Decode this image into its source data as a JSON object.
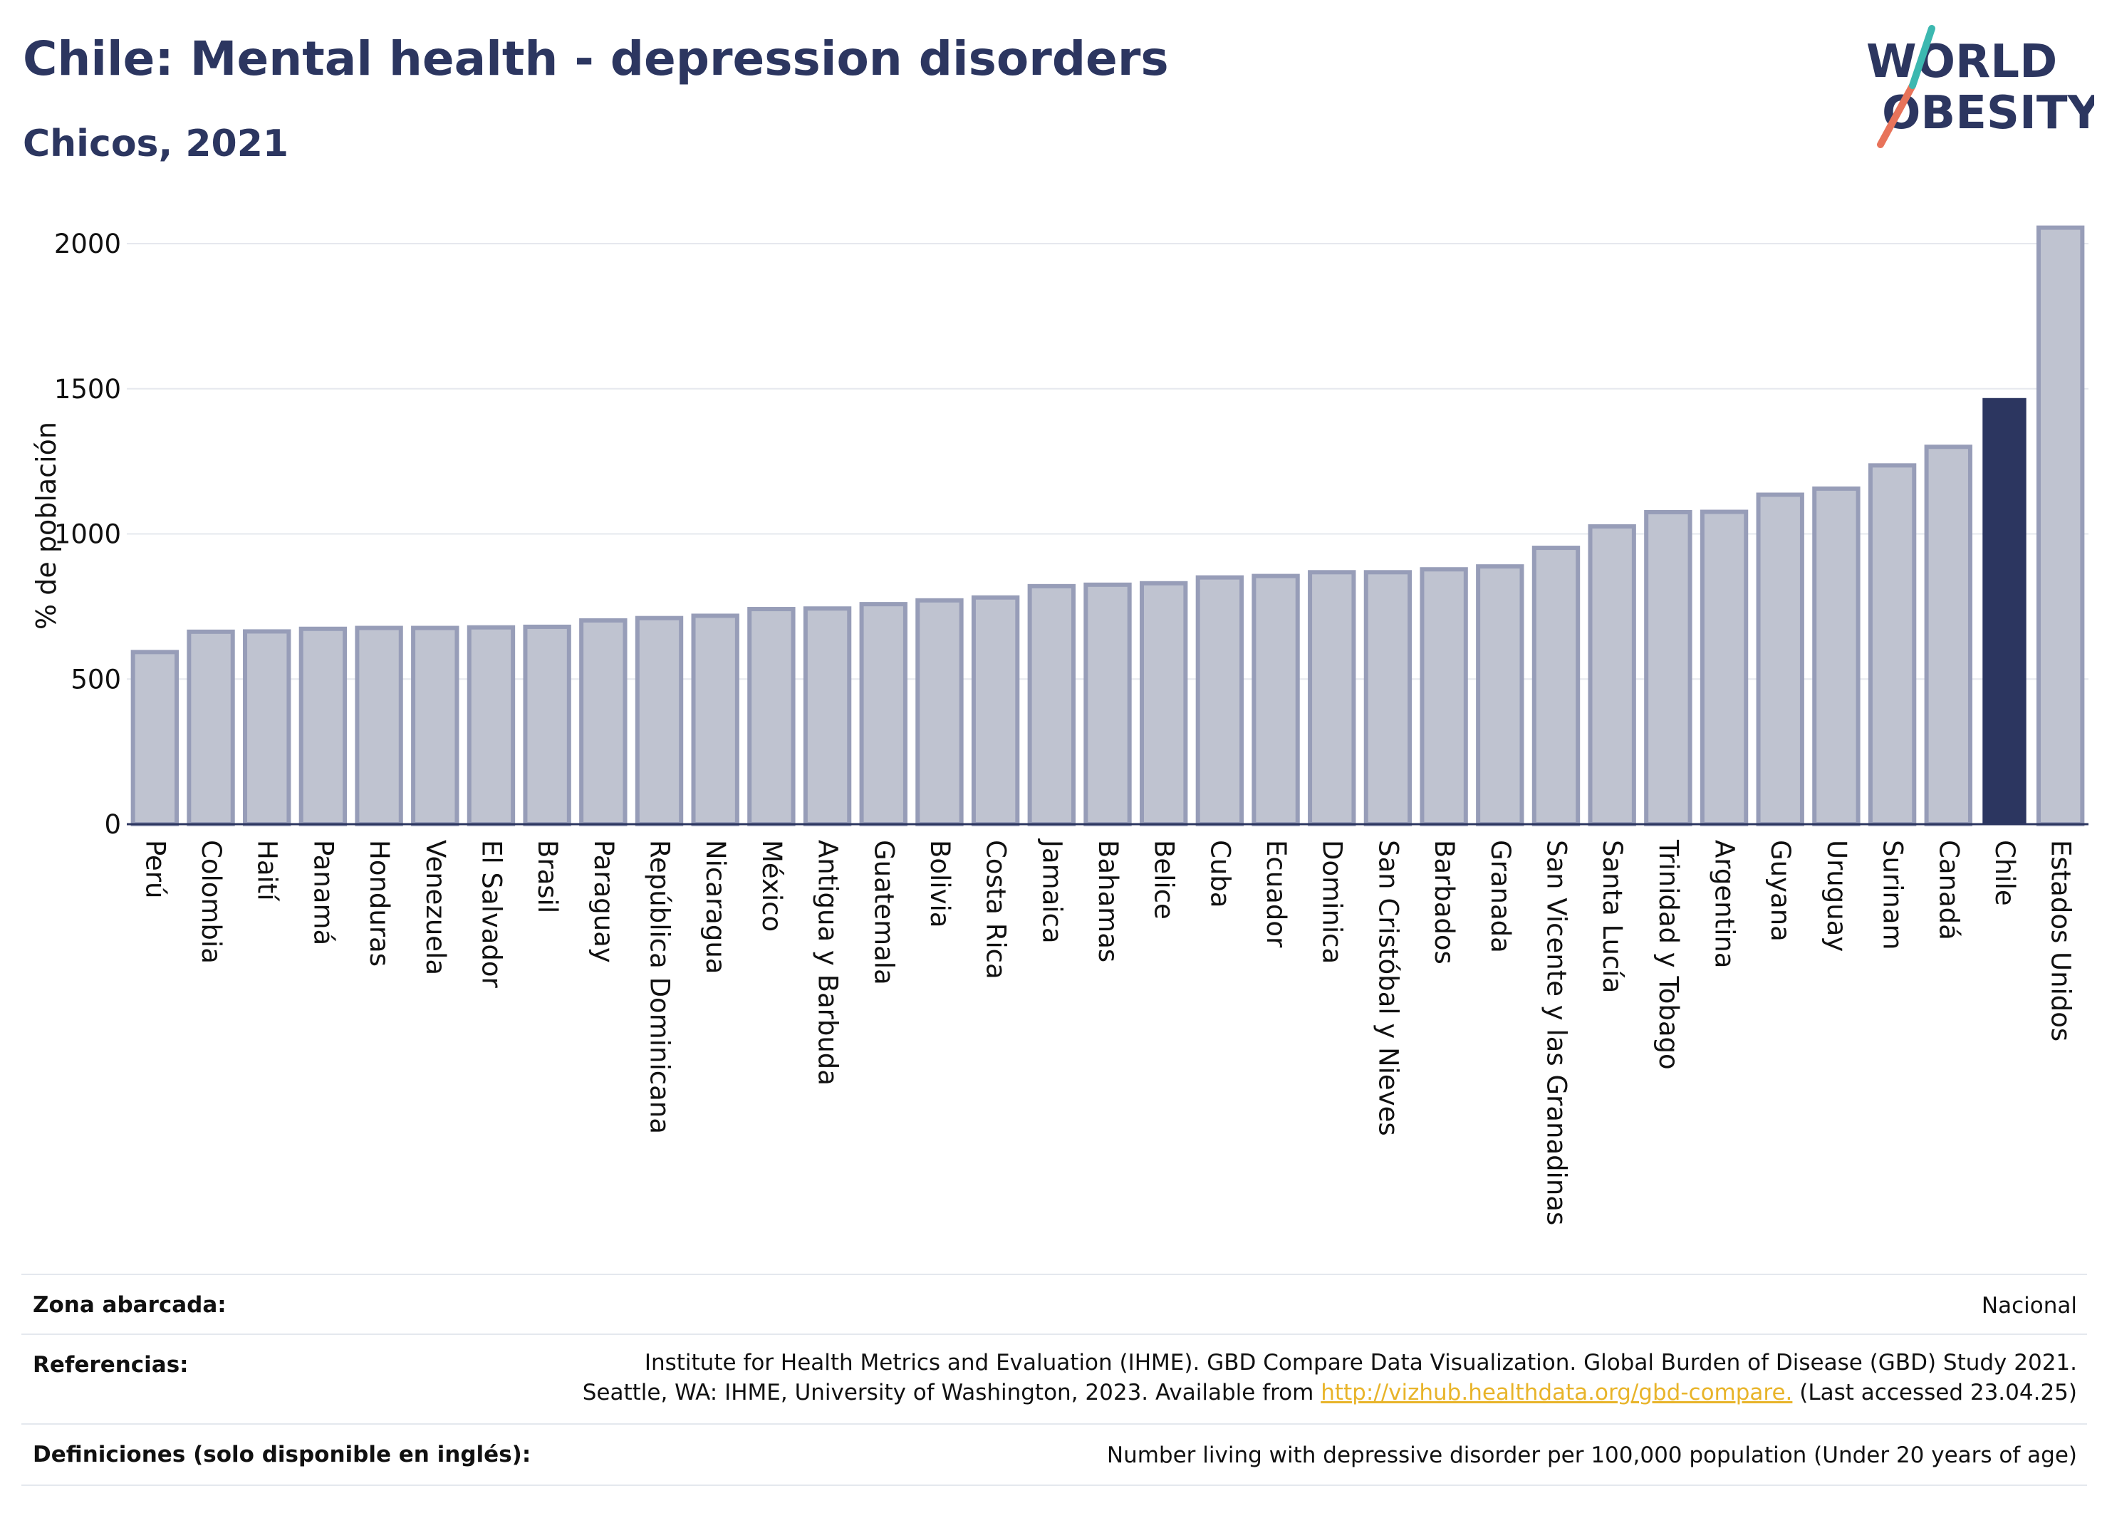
{
  "header": {
    "title": "Chile: Mental health - depression disorders",
    "subtitle": "Chicos, 2021"
  },
  "logo": {
    "line1": "WORLD",
    "line2": "OBESITY"
  },
  "chart_data": {
    "type": "bar",
    "ylabel": "% de población",
    "ylim": [
      0,
      2100
    ],
    "yticks": [
      0,
      500,
      1000,
      1500,
      2000
    ],
    "grid": true,
    "highlight": "Chile",
    "colors": {
      "default": "#bfc3d0",
      "default_border": "#979db8",
      "highlight": "#2c3660"
    },
    "categories": [
      "Perú",
      "Colombia",
      "Haití",
      "Panamá",
      "Honduras",
      "Venezuela",
      "El Salvador",
      "Brasil",
      "Paraguay",
      "República Dominicana",
      "Nicaragua",
      "México",
      "Antigua y Barbuda",
      "Guatemala",
      "Bolivia",
      "Costa Rica",
      "Jamaica",
      "Bahamas",
      "Belice",
      "Cuba",
      "Ecuador",
      "Dominica",
      "San Cristóbal y Nieves",
      "Barbados",
      "Granada",
      "San Vicente y las Granadinas",
      "Santa Lucía",
      "Trinidad y Tobago",
      "Argentina",
      "Guyana",
      "Uruguay",
      "Surinam",
      "Canadá",
      "Chile",
      "Estados Unidos"
    ],
    "values": [
      593,
      663,
      664,
      673,
      676,
      676,
      678,
      680,
      702,
      710,
      718,
      741,
      743,
      758,
      771,
      781,
      820,
      825,
      830,
      850,
      855,
      868,
      868,
      878,
      888,
      952,
      1026,
      1075,
      1076,
      1135,
      1156,
      1236,
      1300,
      1468,
      2055
    ]
  },
  "info": {
    "coverage_label": "Zona abarcada:",
    "coverage_value": "Nacional",
    "references_label": "Referencias:",
    "references_line1": "Institute for Health Metrics and Evaluation (IHME). GBD Compare Data Visualization. Global Burden of Disease (GBD) Study 2021.",
    "references_line2_pre": "Seattle, WA: IHME, University of Washington, 2023. Available from ",
    "references_link": "http://vizhub.healthdata.org/gbd-compare.",
    "references_line2_post": " (Last accessed 23.04.25)",
    "definitions_label": "Definiciones (solo disponible en inglés):",
    "definitions_value": "Number living with depressive disorder per 100,000 population (Under 20 years of age)"
  }
}
